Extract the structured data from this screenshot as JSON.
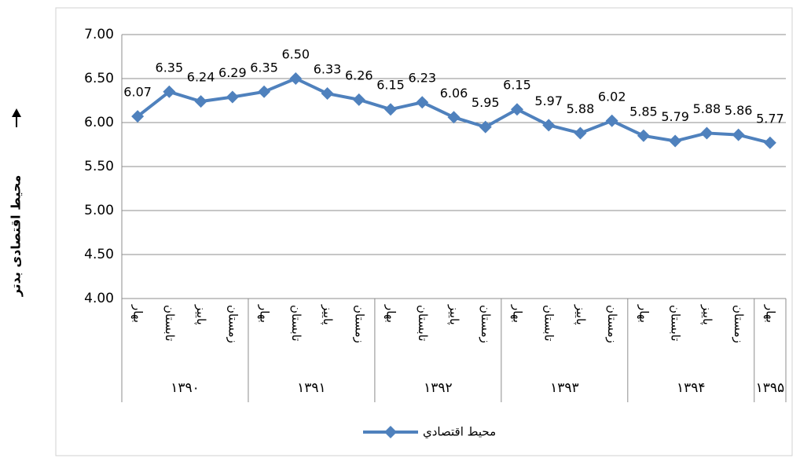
{
  "chart_data": {
    "type": "line",
    "y_label": "محیط اقتصادی بدتر",
    "category_groups": [
      {
        "label": "۱۳۹۰",
        "categories": [
          "بهار",
          "تابستان",
          "پاییز",
          "زمستان"
        ]
      },
      {
        "label": "۱۳۹۱",
        "categories": [
          "بهار",
          "تابستان",
          "پاییز",
          "زمستان"
        ]
      },
      {
        "label": "۱۳۹۲",
        "categories": [
          "بهار",
          "تابستان",
          "پاییز",
          "زمستان"
        ]
      },
      {
        "label": "۱۳۹۳",
        "categories": [
          "بهار",
          "تابستان",
          "پاییز",
          "زمستان"
        ]
      },
      {
        "label": "۱۳۹۴",
        "categories": [
          "بهار",
          "تابستان",
          "پاییز",
          "زمستان"
        ]
      },
      {
        "label": "۱۳۹۵",
        "categories": [
          "بهار"
        ]
      }
    ],
    "series": [
      {
        "name": "محیط اقتصادي",
        "color": "#4f81bd",
        "values": [
          6.07,
          6.35,
          6.24,
          6.29,
          6.35,
          6.5,
          6.33,
          6.26,
          6.15,
          6.23,
          6.06,
          5.95,
          6.15,
          5.97,
          5.88,
          6.02,
          5.85,
          5.79,
          5.88,
          5.86,
          5.77
        ],
        "value_labels": [
          "6.07",
          "6.35",
          "6.24",
          "6.29",
          "6.35",
          "6.50",
          "6.33",
          "6.26",
          "6.15",
          "6.23",
          "6.06",
          "5.95",
          "6.15",
          "5.97",
          "5.88",
          "6.02",
          "5.85",
          "5.79",
          "5.88",
          "5.86",
          "5.77"
        ]
      }
    ],
    "ylim": [
      4,
      7
    ],
    "yticks": [
      {
        "value": 4,
        "label": "4.00"
      },
      {
        "value": 4.5,
        "label": "4.50"
      },
      {
        "value": 5,
        "label": "5.00"
      },
      {
        "value": 5.5,
        "label": "5.50"
      },
      {
        "value": 6,
        "label": "6.00"
      },
      {
        "value": 6.5,
        "label": "6.50"
      },
      {
        "value": 7,
        "label": "7.00"
      }
    ],
    "grid": true,
    "legend": "bottom"
  }
}
